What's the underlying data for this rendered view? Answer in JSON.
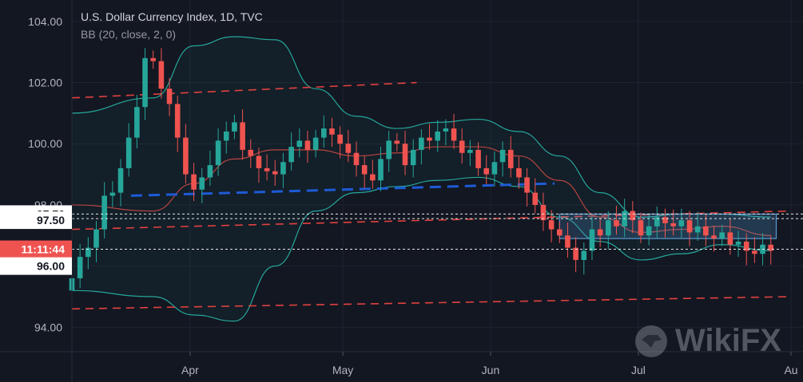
{
  "header": {
    "title": "U.S. Dollar Currency Index, 1D, TVC",
    "indicator": "BB (20, close, 2, 0)"
  },
  "watermark": {
    "text": "WikiFX",
    "icon": "wikifx-logo-icon"
  },
  "colors": {
    "background": "#131722",
    "up": "#26a69a",
    "down": "#ef5350",
    "band": "#26a69a",
    "basis": "#b5453f",
    "red_dash": "#e0423f",
    "blue_dash": "#1e5bd6",
    "range_box": "#5b9bd5",
    "price_tag": "#ef5350"
  },
  "chart_data": {
    "type": "candlestick",
    "y_ticks": [
      94.0,
      96.0,
      98.0,
      100.0,
      102.0,
      104.0
    ],
    "y_tick_labels": [
      "94.00",
      "96.00",
      "98.00",
      "100.00",
      "102.00",
      "104.00"
    ],
    "ylim": [
      93.2,
      104.7
    ],
    "x_labels": [
      {
        "label": "Apr",
        "date": "2022-04-01"
      },
      {
        "label": "May",
        "date": "2022-05-02"
      },
      {
        "label": "Jun",
        "date": "2022-06-01"
      },
      {
        "label": "Jul",
        "date": "2022-07-01"
      },
      {
        "label": "Au",
        "date": "2022-08-01"
      }
    ],
    "xlim": [
      "2022-03-08",
      "2022-08-01"
    ],
    "price_labels": [
      {
        "value": 97.7,
        "label": "97.70",
        "style": "boxed"
      },
      {
        "value": 97.5,
        "label": "97.50",
        "style": "boxed"
      },
      {
        "value": 96.55,
        "label": "11:11:44",
        "style": "current"
      },
      {
        "value": 96.0,
        "label": "96.00",
        "style": "boxed"
      }
    ],
    "horizontal_lines": [
      97.7,
      97.55,
      96.55
    ],
    "closes": [
      95.6,
      96.3,
      96.6,
      97.2,
      98.3,
      98.4,
      99.2,
      100.2,
      101.2,
      102.8,
      102.7,
      101.8,
      101.3,
      100.2,
      99.0,
      98.5,
      98.9,
      99.3,
      100.1,
      100.4,
      100.7,
      99.8,
      99.6,
      99.2,
      99.1,
      99.0,
      99.4,
      99.9,
      100.1,
      99.8,
      100.2,
      100.5,
      100.3,
      100.0,
      99.7,
      99.3,
      99.0,
      98.8,
      99.5,
      100.1,
      100.0,
      99.3,
      99.8,
      100.2,
      100.1,
      100.4,
      100.5,
      100.1,
      99.7,
      99.8,
      99.2,
      99.0,
      99.4,
      99.8,
      99.2,
      98.9,
      98.4,
      98.0,
      97.5,
      97.2,
      97.0,
      96.6,
      96.2,
      96.5,
      97.2,
      97.0,
      97.5,
      97.3,
      97.8,
      97.5,
      97.0,
      97.3,
      97.6,
      97.4,
      97.3,
      97.5,
      97.1,
      97.3,
      97.0,
      96.9,
      97.1,
      96.7,
      96.8,
      96.5,
      96.4,
      96.7,
      96.5
    ],
    "candles_start": "2022-03-08",
    "candle_step_days": 1.65,
    "bollinger": {
      "period": 20,
      "stddev": 2,
      "upper": [
        [
          0,
          101.0
        ],
        [
          10,
          101.5
        ],
        [
          15,
          103.2
        ],
        [
          20,
          103.5
        ],
        [
          25,
          103.4
        ],
        [
          30,
          101.8
        ],
        [
          35,
          100.9
        ],
        [
          40,
          100.5
        ],
        [
          45,
          100.7
        ],
        [
          50,
          100.8
        ],
        [
          55,
          100.4
        ],
        [
          60,
          99.6
        ],
        [
          65,
          98.4
        ],
        [
          70,
          97.6
        ],
        [
          75,
          97.7
        ],
        [
          80,
          97.7
        ],
        [
          86,
          97.6
        ]
      ],
      "basis": [
        [
          0,
          98.0
        ],
        [
          10,
          97.8
        ],
        [
          15,
          98.7
        ],
        [
          20,
          99.5
        ],
        [
          25,
          99.8
        ],
        [
          30,
          99.8
        ],
        [
          35,
          99.6
        ],
        [
          40,
          99.7
        ],
        [
          45,
          99.9
        ],
        [
          50,
          99.9
        ],
        [
          55,
          99.6
        ],
        [
          60,
          98.8
        ],
        [
          65,
          97.6
        ],
        [
          70,
          97.1
        ],
        [
          75,
          97.2
        ],
        [
          80,
          97.3
        ],
        [
          86,
          97.0
        ]
      ],
      "lower": [
        [
          0,
          95.2
        ],
        [
          10,
          95.0
        ],
        [
          15,
          94.4
        ],
        [
          20,
          94.2
        ],
        [
          25,
          96.0
        ],
        [
          30,
          97.8
        ],
        [
          35,
          98.4
        ],
        [
          40,
          98.6
        ],
        [
          45,
          98.8
        ],
        [
          50,
          98.9
        ],
        [
          55,
          98.6
        ],
        [
          60,
          97.6
        ],
        [
          65,
          96.8
        ],
        [
          70,
          96.2
        ],
        [
          75,
          96.4
        ],
        [
          80,
          96.7
        ],
        [
          86,
          96.5
        ]
      ]
    },
    "trend_lines": [
      {
        "style": "red-dash",
        "start": {
          "date": "2022-03-08",
          "value": 101.5
        },
        "end": {
          "date": "2022-05-17",
          "value": 102.0
        }
      },
      {
        "style": "red-dash",
        "start": {
          "date": "2022-03-08",
          "value": 97.2
        },
        "end": {
          "date": "2022-08-01",
          "value": 97.8
        }
      },
      {
        "style": "red-dash",
        "start": {
          "date": "2022-03-08",
          "value": 94.6
        },
        "end": {
          "date": "2022-08-01",
          "value": 95.0
        }
      },
      {
        "style": "blue-dash",
        "start": {
          "date": "2022-03-20",
          "value": 98.3
        },
        "end": {
          "date": "2022-06-14",
          "value": 98.7
        }
      }
    ],
    "range_box": {
      "start": "2022-06-15",
      "end": "2022-07-29",
      "top": 97.7,
      "bottom": 96.9
    }
  }
}
